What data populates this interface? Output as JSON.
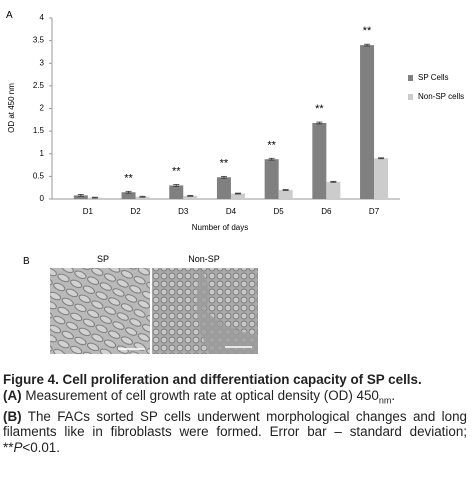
{
  "panel_a_label": "A",
  "chart_data": {
    "type": "bar",
    "y_label": "OD at 450 nm",
    "x_label": "Number of days",
    "categories": [
      "D1",
      "D2",
      "D3",
      "D4",
      "D5",
      "D6",
      "D7"
    ],
    "series": [
      {
        "name": "SP Cells",
        "color": "#808080",
        "values": [
          0.08,
          0.15,
          0.3,
          0.48,
          0.88,
          1.68,
          3.4
        ],
        "errors": [
          0.02,
          0.02,
          0.02,
          0.02,
          0.02,
          0.02,
          0.02
        ]
      },
      {
        "name": "Non-SP cells",
        "color": "#cccccc",
        "values": [
          0.03,
          0.05,
          0.07,
          0.12,
          0.2,
          0.38,
          0.9
        ],
        "errors": [
          0.01,
          0.01,
          0.01,
          0.01,
          0.01,
          0.01,
          0.01
        ]
      }
    ],
    "annotations": [
      null,
      "**",
      "**",
      "**",
      "**",
      "**",
      "**"
    ],
    "ylim": [
      0,
      4
    ],
    "yticks": [
      0,
      0.5,
      1,
      1.5,
      2,
      2.5,
      3,
      3.5,
      4
    ],
    "grid": false,
    "legend": "right"
  },
  "panel_b": {
    "label": "B",
    "images": [
      {
        "label": "SP"
      },
      {
        "label": "Non-SP"
      }
    ]
  },
  "caption": {
    "title": "Figure 4. Cell proliferation and differentiation capacity of SP cells.",
    "a": {
      "label": "(A)",
      "text": "Measurement of cell growth rate at optical density (OD) 450",
      "subscript": "nm",
      "end": "."
    },
    "b": {
      "label": "(B)",
      "text": "The FACs sorted SP cells underwent morphological changes and long filaments like in fibroblasts were formed. Error bar – standard deviation; **",
      "italic": "P",
      "end": "<0.01."
    }
  }
}
